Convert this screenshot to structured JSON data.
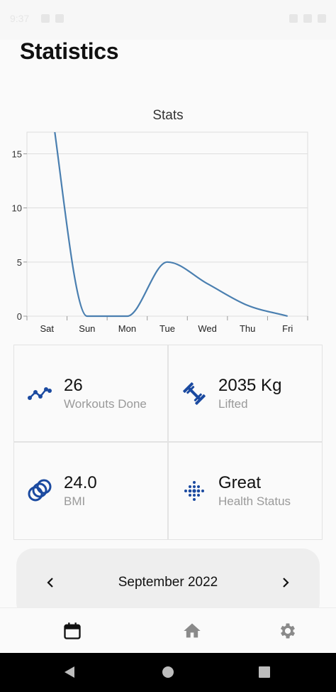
{
  "status_bar": {
    "time": "9:37"
  },
  "page": {
    "title": "Statistics"
  },
  "chart_data": {
    "type": "line",
    "title": "Stats",
    "categories": [
      "Sat",
      "Sun",
      "Mon",
      "Tue",
      "Wed",
      "Thu",
      "Fri"
    ],
    "values": [
      22,
      0,
      0,
      5,
      3,
      1,
      0
    ],
    "y_ticks": [
      "0",
      "5",
      "10",
      "15"
    ],
    "ylim": [
      0,
      17
    ],
    "grid": true,
    "color": "#4a7fb0"
  },
  "stats": [
    {
      "value": "26",
      "label": "Workouts Done",
      "icon": "trend-line-icon"
    },
    {
      "value": "2035 Kg",
      "label": "Lifted",
      "icon": "dumbbell-icon"
    },
    {
      "value": "24.0",
      "label": "BMI",
      "icon": "rings-icon"
    },
    {
      "value": "Great",
      "label": "Health Status",
      "icon": "dots-grid-icon"
    }
  ],
  "month_selector": {
    "label": "September 2022"
  },
  "bottom_nav": [
    "calendar-icon",
    "home-icon",
    "settings-icon"
  ],
  "colors": {
    "accent": "#1b4aa0",
    "line": "#4a7fb0",
    "icon_active": "#111111",
    "icon_inactive": "#8a8a8a"
  }
}
